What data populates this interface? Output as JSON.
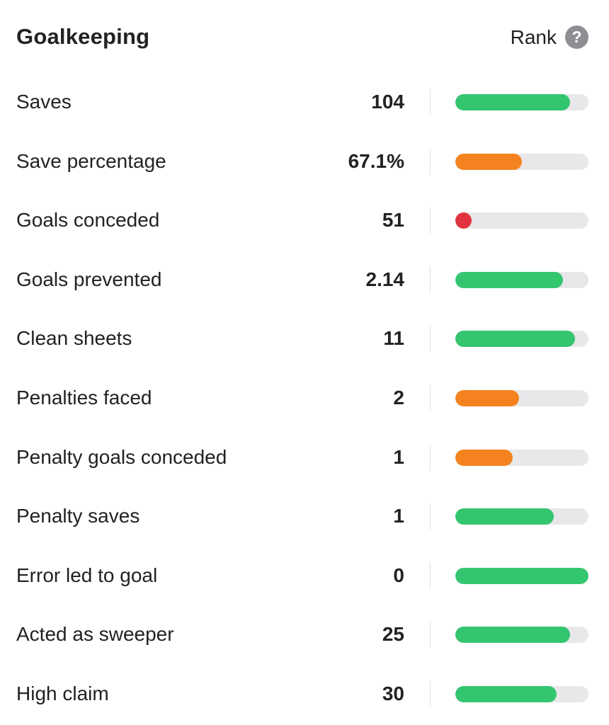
{
  "header": {
    "title": "Goalkeeping",
    "rank_label": "Rank",
    "help_glyph": "?"
  },
  "colors": {
    "green": "#34c56f",
    "orange": "#f4831f",
    "red": "#e0333d",
    "track": "#e8e8ea"
  },
  "stats": [
    {
      "label": "Saves",
      "value": "104",
      "rank_fraction": 0.86,
      "status": "green"
    },
    {
      "label": "Save percentage",
      "value": "67.1%",
      "rank_fraction": 0.5,
      "status": "orange"
    },
    {
      "label": "Goals conceded",
      "value": "51",
      "rank_fraction": 0.12,
      "status": "red"
    },
    {
      "label": "Goals prevented",
      "value": "2.14",
      "rank_fraction": 0.81,
      "status": "green"
    },
    {
      "label": "Clean sheets",
      "value": "11",
      "rank_fraction": 0.9,
      "status": "green"
    },
    {
      "label": "Penalties faced",
      "value": "2",
      "rank_fraction": 0.48,
      "status": "orange"
    },
    {
      "label": "Penalty goals conceded",
      "value": "1",
      "rank_fraction": 0.43,
      "status": "orange"
    },
    {
      "label": "Penalty saves",
      "value": "1",
      "rank_fraction": 0.74,
      "status": "green"
    },
    {
      "label": "Error led to goal",
      "value": "0",
      "rank_fraction": 1.0,
      "status": "green"
    },
    {
      "label": "Acted as sweeper",
      "value": "25",
      "rank_fraction": 0.86,
      "status": "green"
    },
    {
      "label": "High claim",
      "value": "30",
      "rank_fraction": 0.76,
      "status": "green"
    }
  ]
}
